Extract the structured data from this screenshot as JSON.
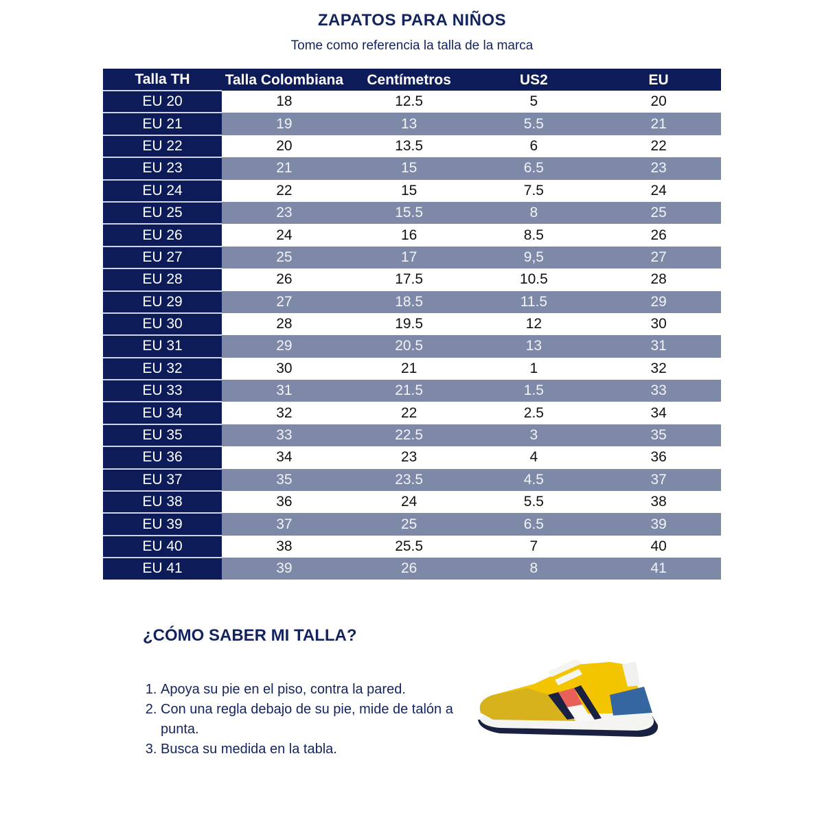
{
  "title": "ZAPATOS PARA NIÑOS",
  "subtitle": "Tome como referencia la talla de la marca",
  "table": {
    "headers": [
      "Talla TH",
      "Talla Colombiana",
      "Centímetros",
      "US2",
      "EU"
    ],
    "rows": [
      [
        "EU 20",
        "18",
        "12.5",
        "5",
        "20"
      ],
      [
        "EU 21",
        "19",
        "13",
        "5.5",
        "21"
      ],
      [
        "EU 22",
        "20",
        "13.5",
        "6",
        "22"
      ],
      [
        "EU 23",
        "21",
        "15",
        "6.5",
        "23"
      ],
      [
        "EU 24",
        "22",
        "15",
        "7.5",
        "24"
      ],
      [
        "EU 25",
        "23",
        "15.5",
        "8",
        "25"
      ],
      [
        "EU 26",
        "24",
        "16",
        "8.5",
        "26"
      ],
      [
        "EU 27",
        "25",
        "17",
        "9,5",
        "27"
      ],
      [
        "EU 28",
        "26",
        "17.5",
        "10.5",
        "28"
      ],
      [
        "EU 29",
        "27",
        "18.5",
        "11.5",
        "29"
      ],
      [
        "EU 30",
        "28",
        "19.5",
        "12",
        "30"
      ],
      [
        "EU 31",
        "29",
        "20.5",
        "13",
        "31"
      ],
      [
        "EU 32",
        "30",
        "21",
        "1",
        "32"
      ],
      [
        "EU 33",
        "31",
        "21.5",
        "1.5",
        "33"
      ],
      [
        "EU 34",
        "32",
        "22",
        "2.5",
        "34"
      ],
      [
        "EU 35",
        "33",
        "22.5",
        "3",
        "35"
      ],
      [
        "EU 36",
        "34",
        "23",
        "4",
        "36"
      ],
      [
        "EU 37",
        "35",
        "23.5",
        "4.5",
        "37"
      ],
      [
        "EU 38",
        "36",
        "24",
        "5.5",
        "38"
      ],
      [
        "EU 39",
        "37",
        "25",
        "6.5",
        "39"
      ],
      [
        "EU 40",
        "38",
        "25.5",
        "7",
        "40"
      ],
      [
        "EU 41",
        "39",
        "26",
        "8",
        "41"
      ]
    ]
  },
  "how_to": {
    "title": "¿CÓMO SABER MI TALLA?",
    "steps": [
      "Apoya su pie en el piso, contra la pared.",
      "Con una regla debajo de su pie, mide de talón a punta.",
      "Busca su medida en la tabla."
    ]
  },
  "image": {
    "icon": "yellow-sneaker-image"
  },
  "colors": {
    "navy": "#0d1c58",
    "stripe": "#7e89a8",
    "text": "#13235e"
  }
}
